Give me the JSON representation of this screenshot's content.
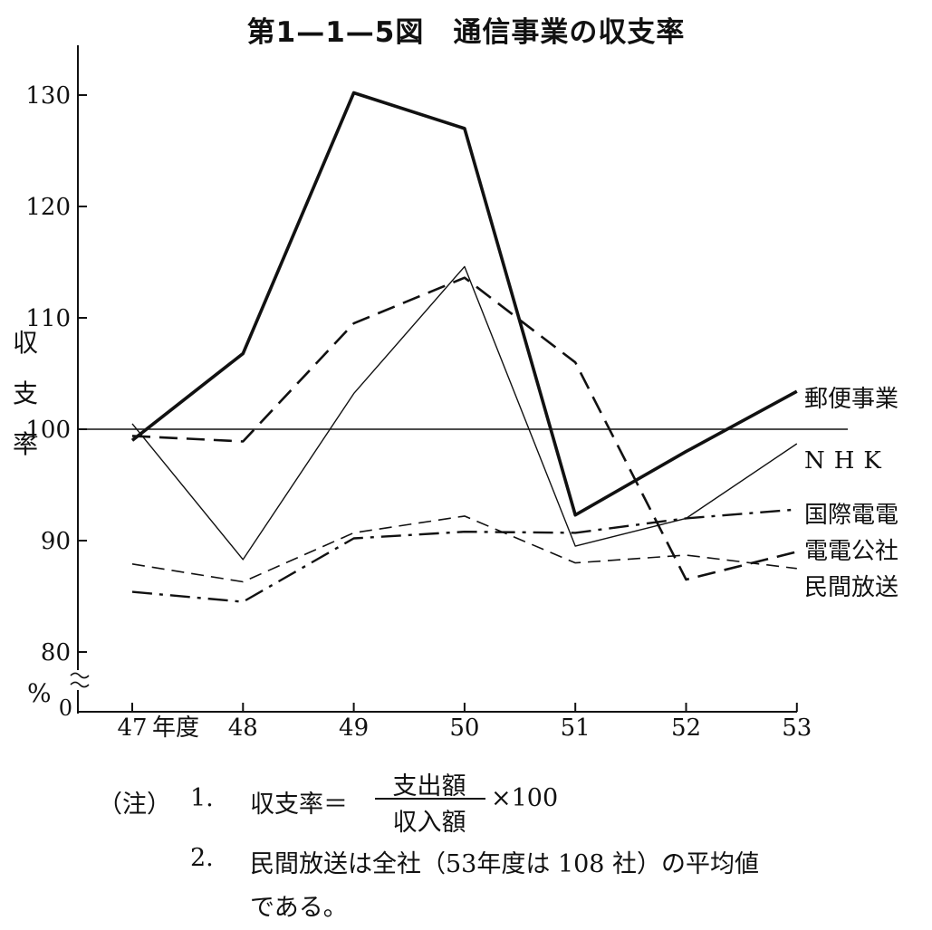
{
  "chart_data": {
    "type": "line",
    "title": "第1—1—5図　通信事業の収支率",
    "ylabel": [
      "収",
      "支",
      "率"
    ],
    "y_unit": "%",
    "y_zero_label": "0",
    "ylim": [
      80,
      135
    ],
    "yticks": [
      {
        "value": 80,
        "label": "80"
      },
      {
        "value": 90,
        "label": "90"
      },
      {
        "value": 100,
        "label": "100"
      },
      {
        "value": 110,
        "label": "110"
      },
      {
        "value": 120,
        "label": "120"
      },
      {
        "value": 130,
        "label": "130"
      }
    ],
    "x": [
      47,
      48,
      49,
      50,
      51,
      52,
      53
    ],
    "x_labels": [
      "47",
      "48",
      "49",
      "50",
      "51",
      "52",
      "53"
    ],
    "x_unit_label": "年度",
    "reference_line": 100,
    "series": [
      {
        "name": "郵便事業",
        "style": "thick-solid",
        "values": [
          99.0,
          106.8,
          130.2,
          127.0,
          92.3,
          98.0,
          103.4
        ]
      },
      {
        "name": "NHK",
        "style": "thin-solid",
        "values": [
          100.5,
          88.3,
          103.2,
          114.6,
          89.5,
          92.0,
          98.7
        ]
      },
      {
        "name": "国際電電",
        "style": "thick-dashed",
        "values": [
          99.4,
          98.9,
          109.5,
          113.6,
          106.0,
          86.5,
          89.0
        ]
      },
      {
        "name": "電電公社",
        "style": "dash-dot",
        "values": [
          85.4,
          84.5,
          90.2,
          90.8,
          90.7,
          92.0,
          92.8
        ]
      },
      {
        "name": "民間放送",
        "style": "thin-dashed",
        "values": [
          87.9,
          86.3,
          90.7,
          92.2,
          88.0,
          88.7,
          87.5
        ]
      }
    ]
  },
  "notes": {
    "label": "（注）",
    "n1": "1.",
    "n1_lhs": "収支率＝",
    "n1_numerator": "支出額",
    "n1_denominator": "収入額",
    "n1_factor": "×100",
    "n2": "2.",
    "n2_text1": "民間放送は全社（53年度は 108 社）の平均値",
    "n2_text2": "である。"
  }
}
